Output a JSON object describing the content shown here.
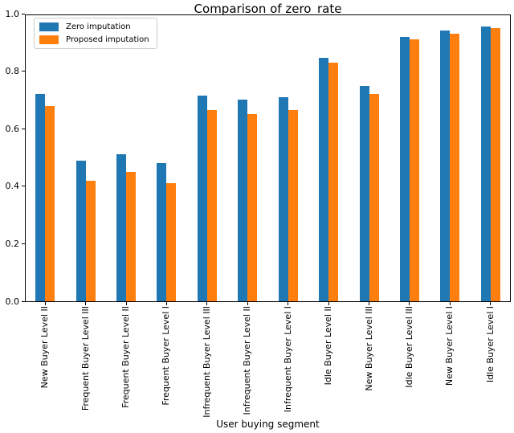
{
  "chart_data": {
    "type": "bar",
    "title": "Comparison of zero_rate",
    "xlabel": "User buying segment",
    "ylabel": "",
    "ylim": [
      0.0,
      1.0
    ],
    "yticks": [
      0.0,
      0.2,
      0.4,
      0.6,
      0.8,
      1.0
    ],
    "grid": false,
    "legend_position": "upper left",
    "categories": [
      "New Buyer Level II",
      "Frequent Buyer Level III",
      "Frequent Buyer Level II",
      "Frequent Buyer Level I",
      "Infrequent Buyer Level III",
      "Infrequent Buyer Level II",
      "Infrequent Buyer Level I",
      "Idle Buyer Level II",
      "New Buyer Level III",
      "Idle Buyer Level III",
      "New Buyer Level I",
      "Idle Buyer Level I"
    ],
    "series": [
      {
        "name": "Zero imputation",
        "color": "#1f77b4",
        "values": [
          0.72,
          0.49,
          0.51,
          0.48,
          0.715,
          0.7,
          0.71,
          0.845,
          0.75,
          0.92,
          0.94,
          0.955
        ]
      },
      {
        "name": "Proposed imputation",
        "color": "#ff7f0e",
        "values": [
          0.68,
          0.42,
          0.45,
          0.41,
          0.665,
          0.65,
          0.665,
          0.83,
          0.72,
          0.91,
          0.93,
          0.95
        ]
      }
    ]
  }
}
